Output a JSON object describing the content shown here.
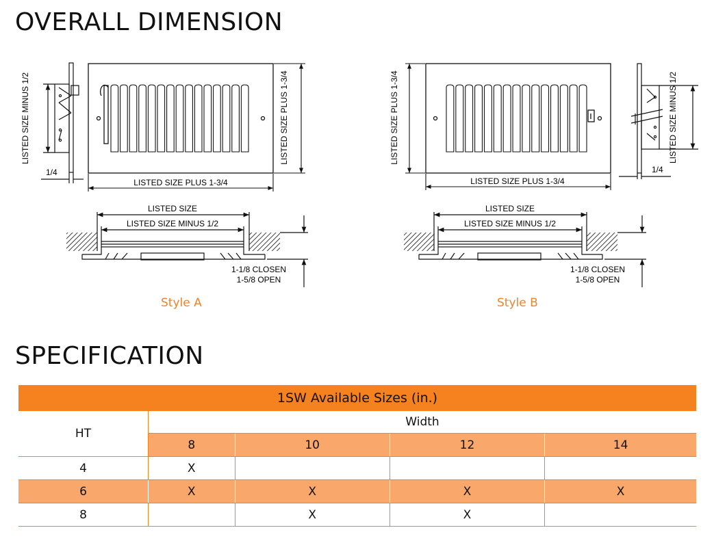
{
  "headings": {
    "overall": "OVERALL DIMENSION",
    "specification": "SPECIFICATION"
  },
  "drawings": {
    "style_a": {
      "label": "Style A",
      "side_height": "LISTED SIZE MINUS 1/2",
      "front_height": "LISTED SIZE PLUS 1-3/4",
      "depth": "1/4",
      "front_width": "LISTED SIZE PLUS 1-3/4",
      "section_outer": "LISTED SIZE",
      "section_inner": "LISTED SIZE MINUS 1/2",
      "closed": "1-1/8 CLOSEN",
      "open": "1-5/8 OPEN"
    },
    "style_b": {
      "label": "Style B",
      "side_height": "LISTED SIZE MINUS 1/2",
      "front_height": "LISTED SIZE PLUS 1-3/4",
      "depth": "1/4",
      "front_width": "LISTED SIZE PLUS 1-3/4",
      "section_outer": "LISTED SIZE",
      "section_inner": "LISTED SIZE MINUS 1/2",
      "closed": "1-1/8 CLOSEN",
      "open": "1-5/8 OPEN"
    }
  },
  "table": {
    "title": "1SW Available Sizes (in.)",
    "ht_header": "HT",
    "width_header": "Width",
    "widths": [
      "8",
      "10",
      "12",
      "14"
    ],
    "rows": [
      {
        "ht": "4",
        "cells": [
          "X",
          "",
          "",
          ""
        ]
      },
      {
        "ht": "6",
        "cells": [
          "X",
          "X",
          "X",
          "X"
        ]
      },
      {
        "ht": "8",
        "cells": [
          "",
          "X",
          "X",
          ""
        ]
      }
    ]
  }
}
